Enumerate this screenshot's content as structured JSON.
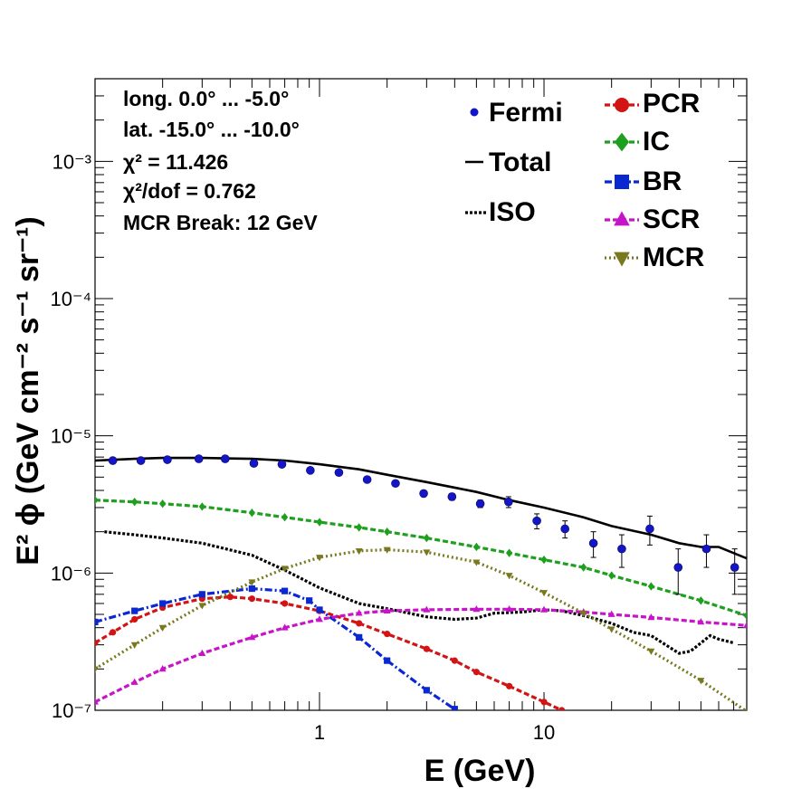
{
  "chart_data": {
    "type": "scatter",
    "title": "",
    "xlabel": "E (GeV)",
    "ylabel": "E² ϕ (GeV cm⁻² s⁻¹ sr⁻¹)",
    "xscale": "log",
    "yscale": "log",
    "xlim": [
      0.1,
      80
    ],
    "ylim": [
      1e-07,
      0.004
    ],
    "x_ticks": [
      {
        "value": 1,
        "label": "1"
      },
      {
        "value": 10,
        "label": "10"
      }
    ],
    "y_ticks": [
      {
        "value": 1e-07,
        "label": "10⁻⁷"
      },
      {
        "value": 1e-06,
        "label": "10⁻⁶"
      },
      {
        "value": 1e-05,
        "label": "10⁻⁵"
      },
      {
        "value": 0.0001,
        "label": "10⁻⁴"
      },
      {
        "value": 0.001,
        "label": "10⁻³"
      }
    ],
    "annotations": [
      "long. 0.0° ... -5.0°",
      "lat. -15.0° ... -10.0°",
      "χ² = 11.426",
      "χ²/dof = 0.762",
      "MCR Break: 12 GeV"
    ],
    "legend_position": "top-right",
    "series": [
      {
        "name": "Fermi",
        "style": "points-errorbars",
        "color": "#1414c8",
        "x": [
          0.12,
          0.16,
          0.21,
          0.29,
          0.38,
          0.51,
          0.68,
          0.91,
          1.22,
          1.63,
          2.18,
          2.91,
          3.89,
          5.2,
          6.95,
          9.29,
          12.4,
          16.6,
          22.2,
          29.6,
          39.6,
          52.9,
          70.7
        ],
        "y": [
          6.6e-06,
          6.6e-06,
          6.7e-06,
          6.8e-06,
          6.8e-06,
          6.3e-06,
          6.2e-06,
          5.6e-06,
          5.4e-06,
          4.8e-06,
          4.5e-06,
          3.8e-06,
          3.6e-06,
          3.2e-06,
          3.3e-06,
          2.4e-06,
          2.1e-06,
          1.65e-06,
          1.5e-06,
          2.1e-06,
          1.1e-06,
          1.5e-06,
          1.1e-06
        ],
        "y_err": [
          2e-07,
          2e-07,
          2e-07,
          2e-07,
          2e-07,
          2e-07,
          2e-07,
          2e-07,
          2e-07,
          2e-07,
          2e-07,
          2e-07,
          2e-07,
          2e-07,
          3e-07,
          3e-07,
          3e-07,
          3.5e-07,
          4e-07,
          5e-07,
          4e-07,
          4e-07,
          4e-07
        ]
      },
      {
        "name": "Total",
        "style": "solid",
        "color": "#000000",
        "x": [
          0.1,
          0.15,
          0.2,
          0.3,
          0.5,
          0.7,
          1,
          1.5,
          2,
          3,
          5,
          7,
          10,
          15,
          20,
          30,
          40,
          50,
          60,
          80
        ],
        "y": [
          6.6e-06,
          6.8e-06,
          6.9e-06,
          6.9e-06,
          6.8e-06,
          6.6e-06,
          6.2e-06,
          5.7e-06,
          5.2e-06,
          4.6e-06,
          3.9e-06,
          3.4e-06,
          3e-06,
          2.55e-06,
          2.2e-06,
          1.9e-06,
          1.65e-06,
          1.55e-06,
          1.55e-06,
          1.28e-06
        ]
      },
      {
        "name": "ISO",
        "style": "dotted",
        "color": "#000000",
        "x": [
          0.11,
          0.15,
          0.2,
          0.3,
          0.5,
          0.7,
          1,
          1.5,
          2,
          3,
          4,
          5,
          6,
          8,
          10,
          12,
          15,
          20,
          25,
          30,
          40,
          45,
          55,
          60,
          70
        ],
        "y": [
          2e-06,
          1.9e-06,
          1.8e-06,
          1.65e-06,
          1.35e-06,
          1.05e-06,
          7.8e-07,
          6e-07,
          5.5e-07,
          4.8e-07,
          4.6e-07,
          4.7e-07,
          5.1e-07,
          5.2e-07,
          5.4e-07,
          5.3e-07,
          4.9e-07,
          4.3e-07,
          3.7e-07,
          3.5e-07,
          2.6e-07,
          2.7e-07,
          3.5e-07,
          3.3e-07,
          3.1e-07
        ]
      },
      {
        "name": "IC",
        "style": "dashed-markers",
        "color": "#1ea01e",
        "marker": "diamond",
        "x": [
          0.1,
          0.15,
          0.2,
          0.3,
          0.5,
          0.7,
          1,
          1.5,
          2,
          3,
          5,
          7,
          10,
          15,
          20,
          30,
          50,
          80
        ],
        "y": [
          3.4e-06,
          3.3e-06,
          3.2e-06,
          3.05e-06,
          2.75e-06,
          2.55e-06,
          2.35e-06,
          2.15e-06,
          2e-06,
          1.8e-06,
          1.55e-06,
          1.4e-06,
          1.25e-06,
          1.1e-06,
          9.6e-07,
          8e-07,
          6.3e-07,
          4.9e-07
        ]
      },
      {
        "name": "PCR",
        "style": "dashed-markers",
        "color": "#d21414",
        "marker": "circle",
        "x": [
          0.1,
          0.12,
          0.15,
          0.2,
          0.3,
          0.4,
          0.5,
          0.7,
          1,
          1.5,
          2,
          3,
          4,
          5,
          7,
          10,
          12
        ],
        "y": [
          3.1e-07,
          3.7e-07,
          4.6e-07,
          5.6e-07,
          6.5e-07,
          6.7e-07,
          6.5e-07,
          6e-07,
          5.3e-07,
          4.3e-07,
          3.6e-07,
          2.8e-07,
          2.3e-07,
          1.9e-07,
          1.5e-07,
          1.15e-07,
          1e-07
        ]
      },
      {
        "name": "BR",
        "style": "dashdot-markers",
        "color": "#0a28d2",
        "marker": "square",
        "x": [
          0.1,
          0.15,
          0.2,
          0.3,
          0.5,
          0.7,
          0.9,
          1,
          1.5,
          2,
          3,
          4
        ],
        "y": [
          4.4e-07,
          5.3e-07,
          6e-07,
          7e-07,
          7.7e-07,
          7.4e-07,
          6.3e-07,
          5.4e-07,
          3.4e-07,
          2.3e-07,
          1.4e-07,
          1.02e-07
        ]
      },
      {
        "name": "SCR",
        "style": "dashed-markers",
        "color": "#c814c8",
        "marker": "triangle-up",
        "x": [
          0.1,
          0.15,
          0.2,
          0.3,
          0.5,
          0.7,
          1,
          1.5,
          2,
          3,
          5,
          7,
          10,
          15,
          20,
          30,
          50,
          80
        ],
        "y": [
          1.15e-07,
          1.6e-07,
          2e-07,
          2.6e-07,
          3.4e-07,
          4e-07,
          4.6e-07,
          5.1e-07,
          5.3e-07,
          5.4e-07,
          5.45e-07,
          5.45e-07,
          5.4e-07,
          5.2e-07,
          5e-07,
          4.75e-07,
          4.4e-07,
          4.15e-07
        ]
      },
      {
        "name": "MCR",
        "style": "dotted-markers",
        "color": "#78781e",
        "marker": "triangle-down",
        "x": [
          0.1,
          0.15,
          0.2,
          0.3,
          0.5,
          0.7,
          1,
          1.5,
          2,
          3,
          5,
          7,
          10,
          15,
          20,
          30,
          50,
          80
        ],
        "y": [
          2e-07,
          3e-07,
          4e-07,
          5.8e-07,
          8.6e-07,
          1.08e-06,
          1.3e-06,
          1.45e-06,
          1.48e-06,
          1.42e-06,
          1.2e-06,
          9.6e-07,
          7.2e-07,
          5.1e-07,
          3.9e-07,
          2.7e-07,
          1.65e-07,
          9.8e-08
        ]
      }
    ]
  }
}
